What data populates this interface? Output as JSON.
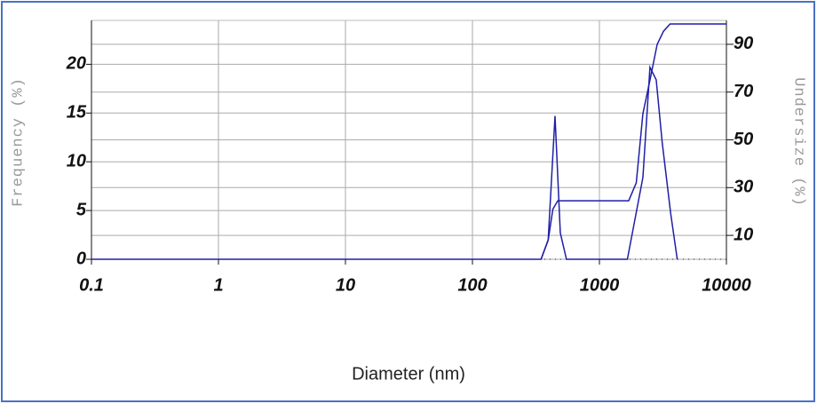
{
  "chart_data": {
    "type": "line",
    "xlabel": "Diameter (nm)",
    "ylabel": "Frequency (%)",
    "y2label": "Undersize (%)",
    "xscale": "log",
    "xlim": [
      0.1,
      10000
    ],
    "xticks": [
      0.1,
      1,
      10,
      100,
      1000,
      10000
    ],
    "ylim": [
      0,
      24.5
    ],
    "yticks": [
      0,
      5,
      10,
      15,
      20
    ],
    "y2lim": [
      0,
      100
    ],
    "y2ticks": [
      10,
      30,
      50,
      70,
      90
    ],
    "grid": true,
    "series": [
      {
        "name": "Frequency",
        "color": "#1f1fa8",
        "x": [
          0.1,
          0.3,
          347,
          395,
          447,
          492,
          550,
          1660,
          2200,
          2500,
          2800,
          3120,
          3640,
          4100
        ],
        "values": [
          0,
          0,
          0,
          2,
          14.7,
          2.7,
          0,
          0,
          8.4,
          19.7,
          18.4,
          12,
          4.7,
          0
        ]
      },
      {
        "name": "Undersize",
        "color": "#1f1fa8",
        "axis": "y2",
        "x": [
          347,
          395,
          430,
          470,
          1700,
          1950,
          2200,
          2500,
          2850,
          3200,
          3600,
          10000
        ],
        "values": [
          0,
          8,
          21,
          24.5,
          24.5,
          32,
          61,
          75,
          90,
          95.5,
          98.5,
          98.5
        ]
      }
    ]
  }
}
